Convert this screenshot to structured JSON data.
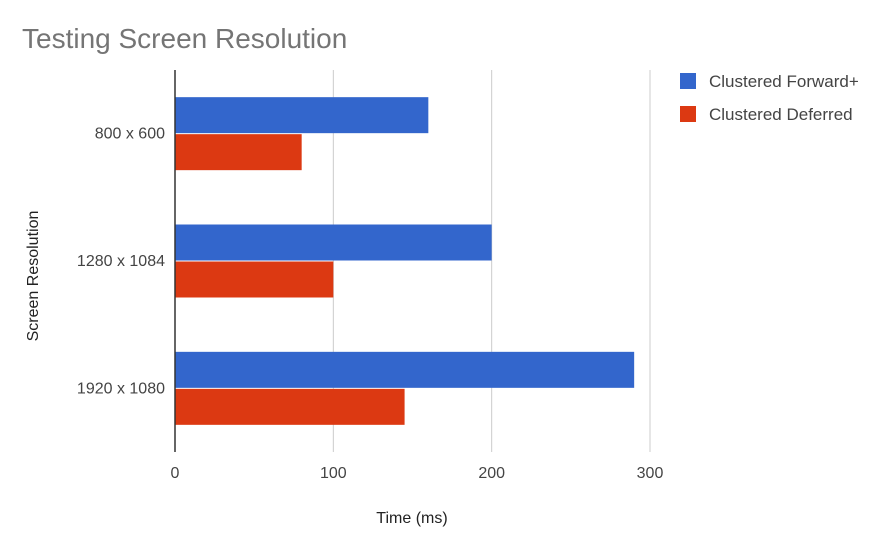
{
  "chart_data": {
    "type": "bar",
    "orientation": "horizontal",
    "title": "Testing Screen Resolution",
    "xlabel": "Time (ms)",
    "ylabel": "Screen Resolution",
    "categories": [
      "800 x 600",
      "1280 x 1084",
      "1920 x 1080"
    ],
    "series": [
      {
        "name": "Clustered Forward+",
        "color": "#3366cc",
        "values": [
          160,
          200,
          290
        ]
      },
      {
        "name": "Clustered Deferred",
        "color": "#dc3912",
        "values": [
          80,
          100,
          145
        ]
      }
    ],
    "xlim": [
      0,
      300
    ],
    "xticks": [
      "0",
      "100",
      "200",
      "300"
    ],
    "grid": true,
    "legend_position": "right"
  }
}
